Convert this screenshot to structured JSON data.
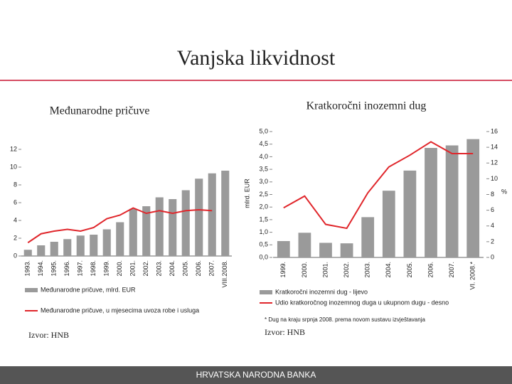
{
  "title": "Vanjska likvidnost",
  "footer": "HRVATSKA NARODNA BANKA",
  "chart_data": [
    {
      "type": "combo",
      "title": "Međunarodne pričuve",
      "source": "Izvor: HNB",
      "categories": [
        "1993.",
        "1994.",
        "1995.",
        "1996.",
        "1997.",
        "1998.",
        "1999.",
        "2000.",
        "2001.",
        "2002.",
        "2003.",
        "2004.",
        "2005.",
        "2006.",
        "2007.",
        "VIII.2008."
      ],
      "series": [
        {
          "name": "Međunarodne pričuve, mlrd. EUR",
          "type": "bar",
          "color": "#9a9a9a",
          "values": [
            0.7,
            1.2,
            1.6,
            1.9,
            2.3,
            2.4,
            3.0,
            3.8,
            5.3,
            5.6,
            6.6,
            6.4,
            7.4,
            8.7,
            9.3,
            9.6
          ]
        },
        {
          "name": "Međunarodne pričuve, u mjesecima uvoza robe i usluga",
          "type": "line",
          "color": "#e0262b",
          "values": [
            1.5,
            2.5,
            2.8,
            3.0,
            2.8,
            3.2,
            4.2,
            4.6,
            5.4,
            4.8,
            5.1,
            4.8,
            5.1,
            5.2,
            5.1,
            null
          ]
        }
      ],
      "ylim": [
        0,
        12
      ],
      "yticks": [
        0,
        2,
        4,
        6,
        8,
        10,
        12
      ]
    },
    {
      "type": "combo",
      "title": "Kratkoročni inozemni dug",
      "source": "Izvor: HNB",
      "ylabel": "mlrd. EUR",
      "y2label": "%",
      "note": "* Dug na kraju srpnja 2008. prema novom sustavu izvještavanja",
      "categories": [
        "1999.",
        "2000.",
        "2001.",
        "2002.",
        "2003.",
        "2004.",
        "2005.",
        "2006.",
        "2007.",
        "VI. 2008.*"
      ],
      "series": [
        {
          "name": "Kratkoročni inozemni dug - lijevo",
          "type": "bar",
          "color": "#9a9a9a",
          "values": [
            0.65,
            0.98,
            0.58,
            0.56,
            1.6,
            2.65,
            3.45,
            4.35,
            4.45,
            4.7
          ]
        },
        {
          "name": "Udio kratkoročnog inozemnog duga u ukupnom dugu - desno",
          "type": "line",
          "axis": "y2",
          "color": "#e0262b",
          "values": [
            6.3,
            7.8,
            4.2,
            3.7,
            8.2,
            11.5,
            13.0,
            14.7,
            13.2,
            13.2
          ]
        }
      ],
      "ylim": [
        0,
        5
      ],
      "yticks": [
        {
          "value": 0,
          "label": "0,0"
        },
        {
          "value": 0.5,
          "label": "0,5"
        },
        {
          "value": 1,
          "label": "1,0"
        },
        {
          "value": 1.5,
          "label": "1,5"
        },
        {
          "value": 2,
          "label": "2,0"
        },
        {
          "value": 2.5,
          "label": "2,5"
        },
        {
          "value": 3,
          "label": "3,0"
        },
        {
          "value": 3.5,
          "label": "3,5"
        },
        {
          "value": 4,
          "label": "4,0"
        },
        {
          "value": 4.5,
          "label": "4,5"
        },
        {
          "value": 5,
          "label": "5,0"
        }
      ],
      "y2lim": [
        0,
        16
      ],
      "y2ticks": [
        0,
        2,
        4,
        6,
        8,
        10,
        12,
        14,
        16
      ]
    }
  ]
}
